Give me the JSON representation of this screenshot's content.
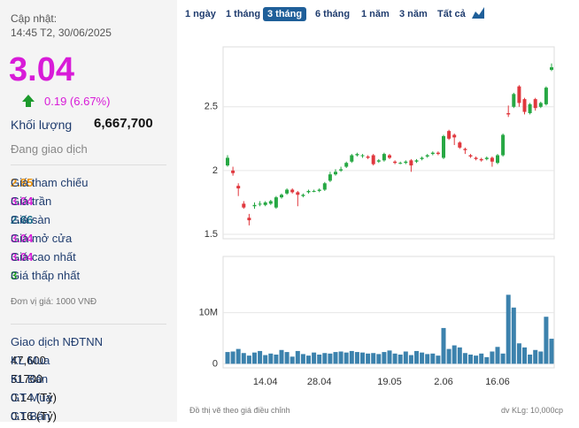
{
  "header": {
    "updated_label": "Cập nhật:",
    "updated_time": "14:45 T2, 30/06/2025"
  },
  "price": {
    "value": "3.04",
    "change": "0.19 (6.67%)"
  },
  "volume": {
    "label": "Khối lượng",
    "value": "6,667,700"
  },
  "status": "Đang giao dịch",
  "stats": [
    {
      "label": "Giá tham chiếu",
      "value": "2.85",
      "color": "#e8910c"
    },
    {
      "label": "Giá trần",
      "value": "3.04",
      "color": "#d81bd8"
    },
    {
      "label": "Giá sàn",
      "value": "2.66",
      "color": "#1a6e8a"
    },
    {
      "label": "Giá mở cửa",
      "value": "3.04",
      "color": "#d81bd8"
    },
    {
      "label": "Giá cao nhất",
      "value": "3.04",
      "color": "#d81bd8"
    },
    {
      "label": "Giá thấp nhất",
      "value": "3",
      "color": "#18a318"
    }
  ],
  "unit_note": "Đơn vị giá: 1000 VNĐ",
  "foreign": {
    "title": "Giao dịch NĐTNN",
    "rows": [
      {
        "label": "KL Mua",
        "value": "47,600"
      },
      {
        "label": "KL Bán",
        "value": "51700"
      },
      {
        "label": "GT Mua",
        "value": "0.14 (Tỷ)"
      },
      {
        "label": "GT Bán",
        "value": "0.16 (Tỷ)"
      }
    ]
  },
  "tabs": [
    "1 ngày",
    "1 tháng",
    "3 tháng",
    "6 tháng",
    "1 năm",
    "3 năm",
    "Tất cả"
  ],
  "selected_tab": 2,
  "footer_left": "Đồ thị vẽ theo giá điều chỉnh",
  "footer_right": "dv KLg: 10,000cp",
  "chart_data": [
    {
      "type": "candlestick",
      "categories": [
        null,
        null,
        null,
        null,
        null,
        null,
        null,
        "14.04",
        null,
        null,
        null,
        null,
        null,
        null,
        null,
        null,
        null,
        "28.04",
        null,
        null,
        null,
        null,
        null,
        null,
        null,
        null,
        null,
        null,
        null,
        null,
        "19.05",
        null,
        null,
        null,
        null,
        null,
        null,
        null,
        null,
        null,
        "2.06",
        null,
        null,
        null,
        null,
        null,
        null,
        null,
        null,
        null,
        "16.06",
        null,
        null,
        null,
        null,
        null,
        null,
        null,
        null,
        null,
        null
      ],
      "series": {
        "open": [
          2.04,
          2.0,
          1.88,
          1.74,
          1.63,
          1.72,
          1.74,
          1.73,
          1.74,
          1.71,
          1.79,
          1.82,
          1.85,
          1.83,
          1.8,
          1.83,
          1.84,
          1.84,
          1.85,
          1.92,
          1.97,
          2.0,
          2.03,
          2.07,
          2.12,
          2.12,
          2.11,
          2.12,
          2.07,
          2.08,
          2.12,
          2.07,
          2.06,
          2.06,
          2.08,
          2.07,
          2.09,
          2.11,
          2.13,
          2.14,
          2.1,
          2.31,
          2.28,
          2.22,
          2.17,
          2.12,
          2.1,
          2.09,
          2.09,
          2.1,
          2.06,
          2.12,
          2.45,
          2.5,
          2.66,
          2.56,
          2.45,
          2.56,
          2.5,
          2.52,
          2.79
        ],
        "high": [
          2.12,
          2.03,
          1.9,
          1.76,
          1.66,
          1.75,
          1.76,
          1.76,
          1.77,
          1.8,
          1.82,
          1.86,
          1.86,
          1.84,
          1.82,
          1.85,
          1.85,
          1.86,
          1.91,
          1.99,
          2.01,
          2.03,
          2.07,
          2.13,
          2.14,
          2.13,
          2.12,
          2.13,
          2.09,
          2.14,
          2.13,
          2.08,
          2.07,
          2.08,
          2.09,
          2.09,
          2.11,
          2.13,
          2.15,
          2.15,
          2.28,
          2.32,
          2.29,
          2.23,
          2.18,
          2.13,
          2.11,
          2.1,
          2.11,
          2.11,
          2.13,
          2.29,
          2.51,
          2.61,
          2.67,
          2.57,
          2.53,
          2.57,
          2.54,
          2.66,
          2.84
        ],
        "low": [
          2.03,
          1.96,
          1.8,
          1.7,
          1.57,
          1.7,
          1.72,
          1.72,
          1.73,
          1.7,
          1.78,
          1.81,
          1.82,
          1.72,
          1.79,
          1.82,
          1.83,
          1.83,
          1.84,
          1.91,
          1.96,
          1.99,
          2.02,
          2.06,
          2.11,
          2.1,
          2.09,
          2.04,
          2.06,
          2.07,
          2.09,
          2.05,
          2.05,
          2.05,
          1.99,
          2.06,
          2.08,
          2.1,
          2.12,
          2.12,
          2.09,
          2.24,
          2.2,
          2.17,
          2.13,
          2.1,
          2.08,
          2.07,
          2.08,
          2.03,
          2.05,
          2.11,
          2.42,
          2.49,
          2.5,
          2.44,
          2.44,
          2.47,
          2.49,
          2.51,
          2.78
        ],
        "close": [
          2.1,
          1.98,
          1.86,
          1.71,
          1.61,
          1.73,
          1.74,
          1.75,
          1.76,
          1.79,
          1.81,
          1.85,
          1.83,
          1.81,
          1.81,
          1.84,
          1.84,
          1.85,
          1.9,
          1.97,
          1.99,
          2.01,
          2.06,
          2.12,
          2.13,
          2.12,
          2.1,
          2.05,
          2.08,
          2.13,
          2.1,
          2.06,
          2.06,
          2.07,
          2.04,
          2.08,
          2.1,
          2.12,
          2.14,
          2.13,
          2.27,
          2.25,
          2.26,
          2.18,
          2.16,
          2.11,
          2.09,
          2.08,
          2.1,
          2.07,
          2.12,
          2.28,
          2.44,
          2.6,
          2.53,
          2.46,
          2.52,
          2.49,
          2.53,
          2.65,
          2.81
        ]
      },
      "up_color": "#27a844",
      "down_color": "#e0383e",
      "ylim": [
        1.465,
        2.97
      ],
      "yticks": [
        1.5,
        2,
        2.5
      ],
      "grid": true
    },
    {
      "type": "bar",
      "values": [
        2300000,
        2400000,
        2900000,
        2100000,
        1600000,
        2200000,
        2500000,
        1700000,
        2000000,
        1800000,
        2700000,
        2300000,
        1400000,
        2500000,
        1900000,
        1600000,
        2200000,
        1800000,
        2100000,
        2000000,
        2300000,
        2400000,
        2200000,
        2500000,
        2300000,
        2200000,
        2000000,
        2100000,
        1900000,
        2300000,
        2600000,
        2000000,
        1800000,
        2400000,
        1700000,
        2500000,
        2200000,
        1900000,
        2000000,
        1600000,
        7000000,
        2900000,
        3600000,
        3200000,
        2100000,
        1800000,
        1600000,
        2000000,
        1300000,
        2400000,
        3300000,
        2000000,
        13500000,
        11000000,
        4000000,
        3200000,
        1800000,
        2700000,
        2400000,
        9200000,
        4900000
      ],
      "color": "#3c82ad",
      "ylim": [
        -800000,
        21000000
      ],
      "yticks": [
        0,
        {
          "value": 10000000,
          "label": "10M"
        }
      ],
      "grid": true
    }
  ]
}
